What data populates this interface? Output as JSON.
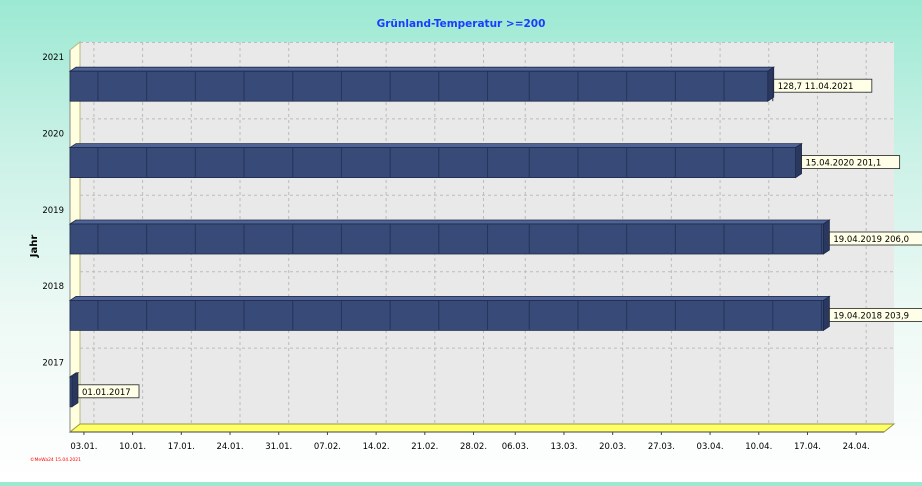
{
  "chart_data": {
    "type": "bar",
    "orientation": "horizontal",
    "title": "Grünland-Temperatur  >=200",
    "ylabel": "Jahr",
    "xlabel": "",
    "x_axis_unit": "date (day.month.)",
    "xlim": [
      "01.01.",
      "28.04."
    ],
    "x_ticks": [
      "03.01.",
      "10.01.",
      "17.01.",
      "24.01.",
      "31.01.",
      "07.02.",
      "14.02.",
      "21.02.",
      "28.02.",
      "06.03.",
      "13.03.",
      "20.03.",
      "27.03.",
      "03.04.",
      "10.04.",
      "17.04.",
      "24.04."
    ],
    "categories": [
      "2021",
      "2020",
      "2019",
      "2018",
      "2017"
    ],
    "end_dates": [
      "11.04.",
      "15.04.",
      "19.04.",
      "19.04.",
      "01.01."
    ],
    "data_labels": [
      "128,7  11.04.2021",
      "15.04.2020  201,1",
      "19.04.2019  206,0",
      "19.04.2018  203,9",
      "01.01.2017"
    ],
    "grid": true,
    "legend": "none",
    "bar_color": "#374a78",
    "bar_top_color": "#4f6396",
    "wall_color": "#ffffe0",
    "floor_color": "#ffff66",
    "watermark": "©MeWa24  15.04.2021",
    "watermark_color": "#ff0000"
  }
}
